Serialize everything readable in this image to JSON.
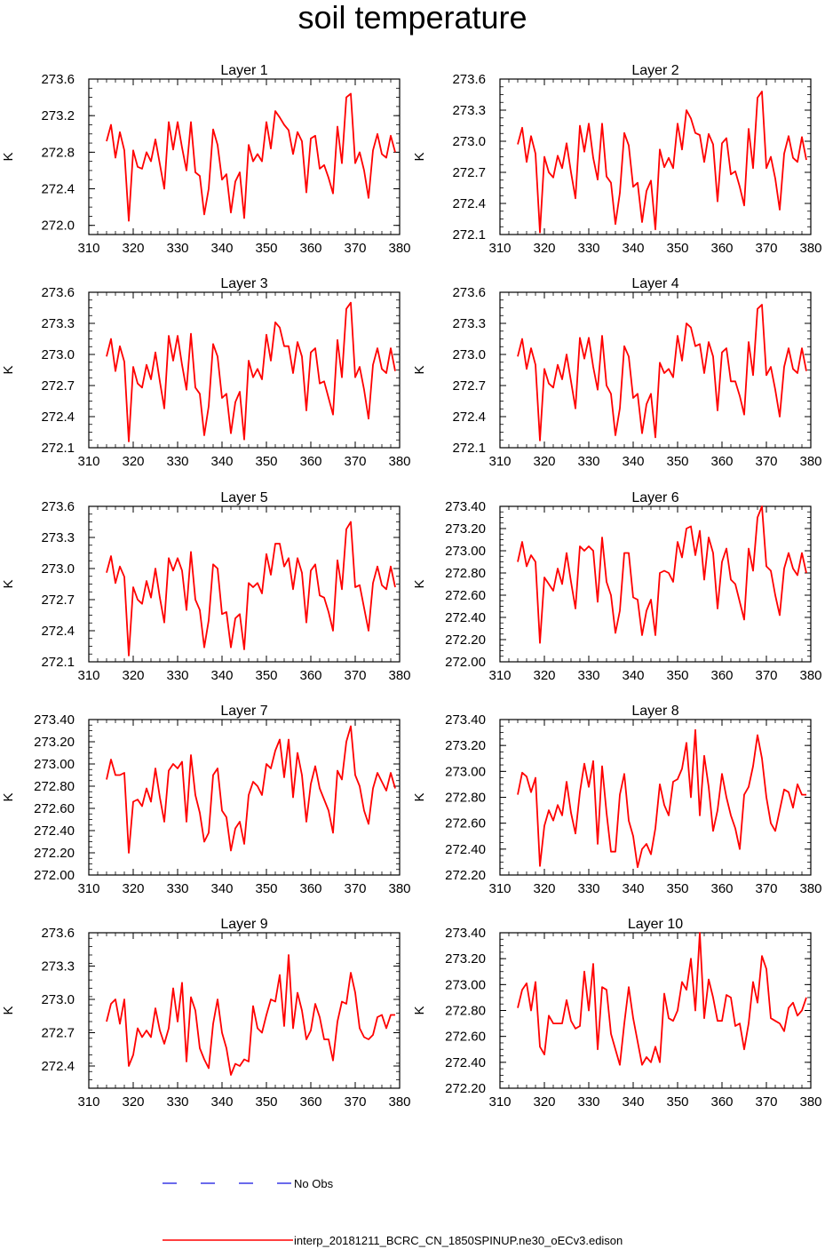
{
  "title": "soil temperature",
  "legend": {
    "obs_label": "No Obs",
    "obs_color": "#1010e0",
    "model_label": "interp_20181211_BCRC_CN_1850SPINUP.ne30_oECv3.edison",
    "model_color": "#ff0000"
  },
  "chart_data": [
    {
      "type": "line",
      "title": "Layer 1",
      "ylabel": "K",
      "xlim": [
        310,
        380
      ],
      "ylim": [
        271.9,
        273.6
      ],
      "yticks": [
        272.0,
        272.4,
        272.8,
        273.2,
        273.6
      ],
      "ytick_labels": [
        "272.0",
        "272.4",
        "272.8",
        "273.2",
        "273.6"
      ],
      "xticks": [
        310,
        320,
        330,
        340,
        350,
        360,
        370,
        380
      ],
      "ytick_step": 0.4,
      "x_start": 314,
      "x_step": 1,
      "values": [
        272.92,
        273.1,
        272.74,
        273.02,
        272.82,
        272.05,
        272.82,
        272.64,
        272.62,
        272.8,
        272.7,
        272.94,
        272.67,
        272.4,
        273.13,
        272.83,
        273.13,
        272.85,
        272.6,
        273.13,
        272.58,
        272.54,
        272.12,
        272.4,
        273.05,
        272.88,
        272.5,
        272.56,
        272.14,
        272.48,
        272.58,
        272.08,
        272.88,
        272.7,
        272.78,
        272.7,
        273.13,
        272.84,
        273.25,
        273.18,
        273.1,
        273.04,
        272.78,
        273.02,
        272.92,
        272.36,
        272.95,
        272.98,
        272.62,
        272.66,
        272.52,
        272.35,
        273.08,
        272.68,
        273.4,
        273.44,
        272.68,
        272.8,
        272.6,
        272.3,
        272.82,
        273.0,
        272.78,
        272.74,
        272.98,
        272.8
      ]
    },
    {
      "type": "line",
      "title": "Layer 2",
      "ylabel": "K",
      "xlim": [
        310,
        380
      ],
      "ylim": [
        272.1,
        273.6
      ],
      "yticks": [
        272.1,
        272.4,
        272.7,
        273.0,
        273.3,
        273.6
      ],
      "ytick_labels": [
        "272.1",
        "272.4",
        "272.7",
        "273.0",
        "273.3",
        "273.6"
      ],
      "xticks": [
        310,
        320,
        330,
        340,
        350,
        360,
        370,
        380
      ],
      "ytick_step": 0.3,
      "x_start": 314,
      "x_step": 1,
      "values": [
        272.97,
        273.13,
        272.8,
        273.05,
        272.88,
        272.12,
        272.85,
        272.7,
        272.65,
        272.86,
        272.74,
        272.98,
        272.7,
        272.45,
        273.15,
        272.9,
        273.17,
        272.84,
        272.63,
        273.17,
        272.66,
        272.6,
        272.2,
        272.5,
        273.08,
        272.96,
        272.56,
        272.6,
        272.22,
        272.52,
        272.62,
        272.15,
        272.92,
        272.75,
        272.84,
        272.74,
        273.17,
        272.92,
        273.3,
        273.22,
        273.08,
        273.06,
        272.8,
        273.07,
        272.97,
        272.42,
        272.98,
        273.03,
        272.68,
        272.71,
        272.56,
        272.38,
        273.12,
        272.74,
        273.42,
        273.48,
        272.74,
        272.85,
        272.64,
        272.34,
        272.88,
        273.05,
        272.84,
        272.8,
        273.04,
        272.82
      ]
    },
    {
      "type": "line",
      "title": "Layer 3",
      "ylabel": "K",
      "xlim": [
        310,
        380
      ],
      "ylim": [
        272.1,
        273.6
      ],
      "yticks": [
        272.1,
        272.4,
        272.7,
        273.0,
        273.3,
        273.6
      ],
      "ytick_labels": [
        "272.1",
        "272.4",
        "272.7",
        "273.0",
        "273.3",
        "273.6"
      ],
      "xticks": [
        310,
        320,
        330,
        340,
        350,
        360,
        370,
        380
      ],
      "ytick_step": 0.3,
      "x_start": 314,
      "x_step": 1,
      "values": [
        272.98,
        273.15,
        272.84,
        273.08,
        272.93,
        272.16,
        272.88,
        272.72,
        272.68,
        272.9,
        272.76,
        273.02,
        272.74,
        272.48,
        273.18,
        272.94,
        273.18,
        272.9,
        272.66,
        273.2,
        272.68,
        272.62,
        272.22,
        272.5,
        273.1,
        272.98,
        272.58,
        272.62,
        272.24,
        272.54,
        272.64,
        272.18,
        272.94,
        272.78,
        272.86,
        272.76,
        273.19,
        272.94,
        273.31,
        273.26,
        273.08,
        273.08,
        272.82,
        273.12,
        272.98,
        272.46,
        273.02,
        273.06,
        272.72,
        272.74,
        272.58,
        272.42,
        273.14,
        272.78,
        273.44,
        273.5,
        272.78,
        272.88,
        272.66,
        272.38,
        272.9,
        273.06,
        272.86,
        272.82,
        273.06,
        272.84
      ]
    },
    {
      "type": "line",
      "title": "Layer 4",
      "ylabel": "K",
      "xlim": [
        310,
        380
      ],
      "ylim": [
        272.1,
        273.6
      ],
      "yticks": [
        272.1,
        272.4,
        272.7,
        273.0,
        273.3,
        273.6
      ],
      "ytick_labels": [
        "272.1",
        "272.4",
        "272.7",
        "273.0",
        "273.3",
        "273.6"
      ],
      "xticks": [
        310,
        320,
        330,
        340,
        350,
        360,
        370,
        380
      ],
      "ytick_step": 0.3,
      "x_start": 314,
      "x_step": 1,
      "values": [
        272.98,
        273.15,
        272.86,
        273.06,
        272.9,
        272.17,
        272.86,
        272.72,
        272.68,
        272.9,
        272.76,
        273.0,
        272.74,
        272.48,
        273.16,
        272.96,
        273.16,
        272.88,
        272.66,
        273.18,
        272.7,
        272.62,
        272.22,
        272.48,
        273.08,
        272.98,
        272.58,
        272.62,
        272.24,
        272.52,
        272.62,
        272.2,
        272.92,
        272.82,
        272.86,
        272.78,
        273.18,
        272.94,
        273.3,
        273.26,
        273.08,
        273.1,
        272.82,
        273.12,
        272.98,
        272.46,
        273.02,
        273.06,
        272.74,
        272.74,
        272.6,
        272.42,
        273.12,
        272.8,
        273.44,
        273.48,
        272.8,
        272.88,
        272.66,
        272.4,
        272.88,
        273.06,
        272.86,
        272.82,
        273.06,
        272.84
      ]
    },
    {
      "type": "line",
      "title": "Layer 5",
      "ylabel": "K",
      "xlim": [
        310,
        380
      ],
      "ylim": [
        272.1,
        273.6
      ],
      "yticks": [
        272.1,
        272.4,
        272.7,
        273.0,
        273.3,
        273.6
      ],
      "ytick_labels": [
        "272.1",
        "272.4",
        "272.7",
        "273.0",
        "273.3",
        "273.6"
      ],
      "xticks": [
        310,
        320,
        330,
        340,
        350,
        360,
        370,
        380
      ],
      "ytick_step": 0.3,
      "x_start": 314,
      "x_step": 1,
      "values": [
        272.96,
        273.12,
        272.86,
        273.02,
        272.92,
        272.16,
        272.82,
        272.7,
        272.66,
        272.88,
        272.72,
        273.0,
        272.72,
        272.48,
        273.1,
        272.98,
        273.1,
        272.98,
        272.6,
        273.16,
        272.7,
        272.6,
        272.24,
        272.5,
        273.04,
        273.0,
        272.56,
        272.58,
        272.24,
        272.52,
        272.56,
        272.22,
        272.86,
        272.82,
        272.86,
        272.76,
        273.14,
        272.94,
        273.24,
        273.24,
        273.02,
        273.1,
        272.8,
        273.1,
        272.96,
        272.48,
        272.98,
        273.04,
        272.74,
        272.72,
        272.58,
        272.4,
        273.08,
        272.8,
        273.38,
        273.45,
        272.82,
        272.84,
        272.62,
        272.4,
        272.86,
        273.02,
        272.84,
        272.8,
        273.02,
        272.82
      ]
    },
    {
      "type": "line",
      "title": "Layer 6",
      "ylabel": "K",
      "xlim": [
        310,
        380
      ],
      "ylim": [
        272.0,
        273.4
      ],
      "yticks": [
        272.0,
        272.2,
        272.4,
        272.6,
        272.8,
        273.0,
        273.2,
        273.4
      ],
      "ytick_labels": [
        "272.00",
        "272.20",
        "272.40",
        "272.60",
        "272.80",
        "273.00",
        "273.20",
        "273.40"
      ],
      "xticks": [
        310,
        320,
        330,
        340,
        350,
        360,
        370,
        380
      ],
      "ytick_step": 0.2,
      "x_start": 314,
      "x_step": 1,
      "values": [
        272.9,
        273.08,
        272.86,
        272.96,
        272.9,
        272.17,
        272.76,
        272.7,
        272.64,
        272.84,
        272.7,
        272.98,
        272.72,
        272.48,
        273.04,
        273.0,
        273.04,
        273.0,
        272.54,
        273.12,
        272.72,
        272.6,
        272.26,
        272.46,
        272.98,
        272.98,
        272.58,
        272.56,
        272.24,
        272.46,
        272.56,
        272.24,
        272.8,
        272.82,
        272.8,
        272.72,
        273.08,
        272.94,
        273.2,
        273.22,
        272.96,
        273.18,
        272.74,
        273.12,
        272.98,
        272.48,
        272.9,
        273.02,
        272.74,
        272.7,
        272.54,
        272.38,
        273.02,
        272.82,
        273.3,
        273.4,
        272.86,
        272.82,
        272.6,
        272.42,
        272.84,
        272.98,
        272.84,
        272.78,
        272.98,
        272.8
      ]
    },
    {
      "type": "line",
      "title": "Layer 7",
      "ylabel": "K",
      "xlim": [
        310,
        380
      ],
      "ylim": [
        272.0,
        273.4
      ],
      "yticks": [
        272.0,
        272.2,
        272.4,
        272.6,
        272.8,
        273.0,
        273.2,
        273.4
      ],
      "ytick_labels": [
        "272.00",
        "272.20",
        "272.40",
        "272.60",
        "272.80",
        "273.00",
        "273.20",
        "273.40"
      ],
      "xticks": [
        310,
        320,
        330,
        340,
        350,
        360,
        370,
        380
      ],
      "ytick_step": 0.2,
      "x_start": 314,
      "x_step": 1,
      "values": [
        272.86,
        273.04,
        272.9,
        272.9,
        272.92,
        272.2,
        272.66,
        272.68,
        272.62,
        272.78,
        272.66,
        272.96,
        272.7,
        272.48,
        272.94,
        273.0,
        272.96,
        273.02,
        272.48,
        273.08,
        272.72,
        272.56,
        272.3,
        272.38,
        272.9,
        272.96,
        272.58,
        272.52,
        272.22,
        272.42,
        272.48,
        272.28,
        272.72,
        272.84,
        272.8,
        272.72,
        273.0,
        272.96,
        273.12,
        273.22,
        272.88,
        273.22,
        272.7,
        273.1,
        272.9,
        272.48,
        272.82,
        272.98,
        272.78,
        272.68,
        272.58,
        272.38,
        272.94,
        272.86,
        273.2,
        273.34,
        272.9,
        272.8,
        272.58,
        272.46,
        272.78,
        272.92,
        272.84,
        272.76,
        272.92,
        272.78
      ]
    },
    {
      "type": "line",
      "title": "Layer 8",
      "ylabel": "K",
      "xlim": [
        310,
        380
      ],
      "ylim": [
        272.2,
        273.4
      ],
      "yticks": [
        272.2,
        272.4,
        272.6,
        272.8,
        273.0,
        273.2,
        273.4
      ],
      "ytick_labels": [
        "272.20",
        "272.40",
        "272.60",
        "272.80",
        "273.00",
        "273.20",
        "273.40"
      ],
      "xticks": [
        310,
        320,
        330,
        340,
        350,
        360,
        370,
        380
      ],
      "ytick_step": 0.2,
      "x_start": 314,
      "x_step": 1,
      "values": [
        272.82,
        272.99,
        272.96,
        272.84,
        272.95,
        272.27,
        272.58,
        272.7,
        272.62,
        272.74,
        272.66,
        272.92,
        272.68,
        272.52,
        272.84,
        273.06,
        272.88,
        273.08,
        272.44,
        273.04,
        272.68,
        272.38,
        272.38,
        272.82,
        272.98,
        272.62,
        272.5,
        272.26,
        272.4,
        272.44,
        272.36,
        272.56,
        272.9,
        272.74,
        272.66,
        272.92,
        272.94,
        273.02,
        273.22,
        272.8,
        273.32,
        272.66,
        273.12,
        272.88,
        272.54,
        272.7,
        272.98,
        272.8,
        272.66,
        272.56,
        272.4,
        272.82,
        272.88,
        273.04,
        273.28,
        273.1,
        272.8,
        272.6,
        272.54,
        272.7,
        272.86,
        272.84,
        272.72,
        272.9,
        272.82,
        272.82
      ]
    },
    {
      "type": "line",
      "title": "Layer 9",
      "ylabel": "K",
      "xlim": [
        310,
        380
      ],
      "ylim": [
        272.2,
        273.6
      ],
      "yticks": [
        272.4,
        272.7,
        273.0,
        273.3,
        273.6
      ],
      "ytick_labels": [
        "272.4",
        "272.7",
        "273.0",
        "273.3",
        "273.6"
      ],
      "xticks": [
        310,
        320,
        330,
        340,
        350,
        360,
        370,
        380
      ],
      "ytick_step": 0.3,
      "x_start": 314,
      "x_step": 1,
      "values": [
        272.8,
        272.96,
        273.0,
        272.78,
        273.0,
        272.4,
        272.5,
        272.74,
        272.66,
        272.72,
        272.66,
        272.92,
        272.72,
        272.6,
        272.74,
        273.1,
        272.8,
        273.15,
        272.44,
        273.02,
        272.9,
        272.56,
        272.46,
        272.38,
        272.78,
        273.0,
        272.7,
        272.56,
        272.32,
        272.42,
        272.4,
        272.46,
        272.44,
        272.94,
        272.74,
        272.7,
        272.86,
        273.0,
        272.98,
        273.22,
        272.76,
        273.4,
        272.74,
        273.06,
        272.9,
        272.64,
        272.72,
        272.96,
        272.84,
        272.64,
        272.64,
        272.45,
        272.8,
        272.98,
        272.96,
        273.24,
        273.06,
        272.74,
        272.66,
        272.64,
        272.68,
        272.84,
        272.86,
        272.74,
        272.86,
        272.86
      ]
    },
    {
      "type": "line",
      "title": "Layer 10",
      "ylabel": "K",
      "xlim": [
        310,
        380
      ],
      "ylim": [
        272.2,
        273.4
      ],
      "yticks": [
        272.2,
        272.4,
        272.6,
        272.8,
        273.0,
        273.2,
        273.4
      ],
      "ytick_labels": [
        "272.20",
        "272.40",
        "272.60",
        "272.80",
        "273.00",
        "273.20",
        "273.40"
      ],
      "xticks": [
        310,
        320,
        330,
        340,
        350,
        360,
        370,
        380
      ],
      "ytick_step": 0.2,
      "x_start": 314,
      "x_step": 1,
      "values": [
        272.82,
        272.96,
        273.01,
        272.8,
        273.02,
        272.52,
        272.46,
        272.76,
        272.7,
        272.7,
        272.7,
        272.88,
        272.72,
        272.66,
        272.68,
        273.1,
        272.8,
        273.16,
        272.5,
        272.98,
        272.96,
        272.62,
        272.5,
        272.38,
        272.7,
        272.98,
        272.74,
        272.56,
        272.38,
        272.44,
        272.4,
        272.52,
        272.4,
        272.93,
        272.74,
        272.72,
        272.8,
        273.02,
        272.96,
        273.2,
        272.8,
        273.4,
        272.74,
        273.04,
        272.9,
        272.72,
        272.72,
        272.92,
        272.9,
        272.68,
        272.7,
        272.5,
        272.7,
        273.02,
        272.86,
        273.22,
        273.12,
        272.74,
        272.72,
        272.7,
        272.64,
        272.82,
        272.86,
        272.76,
        272.8,
        272.9
      ]
    }
  ]
}
